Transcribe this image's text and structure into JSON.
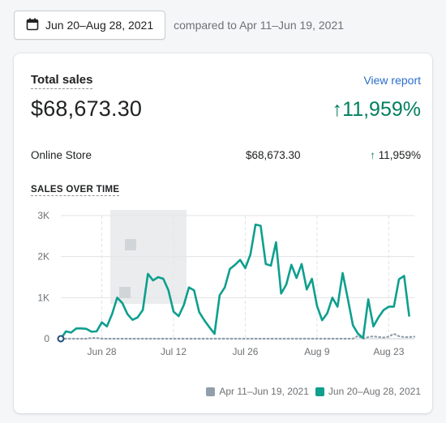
{
  "header": {
    "date_range": "Jun 20–Aug 28, 2021",
    "compare_text": "compared to Apr 11–Jun 19, 2021"
  },
  "card": {
    "title": "Total sales",
    "view_report": "View report",
    "total": "$68,673.30",
    "growth": "11,959%",
    "breakdown": [
      {
        "channel": "Online Store",
        "amount": "$68,673.30",
        "growth": "11,959%"
      }
    ],
    "section_title": "SALES OVER TIME"
  },
  "colors": {
    "current": "#0e9f8e",
    "previous": "#919eab",
    "accent": "#007f5f",
    "link": "#2c6ecb"
  },
  "icons": {
    "date_picker": "calendar-icon",
    "growth": "arrow-up-icon"
  },
  "chart_data": {
    "type": "line",
    "y_ticks": [
      "0",
      "1K",
      "2K",
      "3K"
    ],
    "ylim": [
      0,
      3000
    ],
    "x_ticks": [
      "Jun 28",
      "Jul 12",
      "Jul 26",
      "Aug 9",
      "Aug 23"
    ],
    "x_tick_days": [
      8,
      22,
      36,
      50,
      64
    ],
    "x_range": [
      0,
      69
    ],
    "series": [
      {
        "name": "Apr 11–Jun 19, 2021",
        "style": "dotted",
        "values": [
          0,
          0,
          0,
          0,
          0,
          0,
          20,
          20,
          0,
          0,
          0,
          0,
          0,
          0,
          0,
          0,
          0,
          0,
          0,
          0,
          0,
          0,
          0,
          0,
          0,
          0,
          0,
          0,
          0,
          0,
          0,
          0,
          0,
          0,
          0,
          0,
          0,
          0,
          0,
          0,
          0,
          0,
          0,
          0,
          0,
          0,
          0,
          0,
          0,
          0,
          0,
          0,
          0,
          0,
          0,
          0,
          0,
          0,
          70,
          0,
          40,
          60,
          40,
          30,
          50,
          120,
          60,
          40,
          40,
          50
        ]
      },
      {
        "name": "Jun 20–Aug 28, 2021",
        "style": "solid",
        "values": [
          0,
          180,
          150,
          250,
          250,
          240,
          170,
          180,
          400,
          300,
          600,
          1000,
          870,
          600,
          460,
          520,
          700,
          1580,
          1420,
          1500,
          1460,
          1180,
          660,
          550,
          820,
          1250,
          1180,
          650,
          450,
          280,
          120,
          1060,
          1250,
          1700,
          1800,
          1920,
          1720,
          2050,
          2780,
          2750,
          1820,
          1780,
          2350,
          1100,
          1320,
          1800,
          1480,
          1820,
          1200,
          1460,
          800,
          450,
          620,
          1000,
          780,
          1600,
          980,
          330,
          120,
          20,
          960,
          300,
          520,
          700,
          780,
          780,
          1450,
          1530,
          540
        ]
      }
    ],
    "legend": "bottom-right",
    "grid": true
  }
}
